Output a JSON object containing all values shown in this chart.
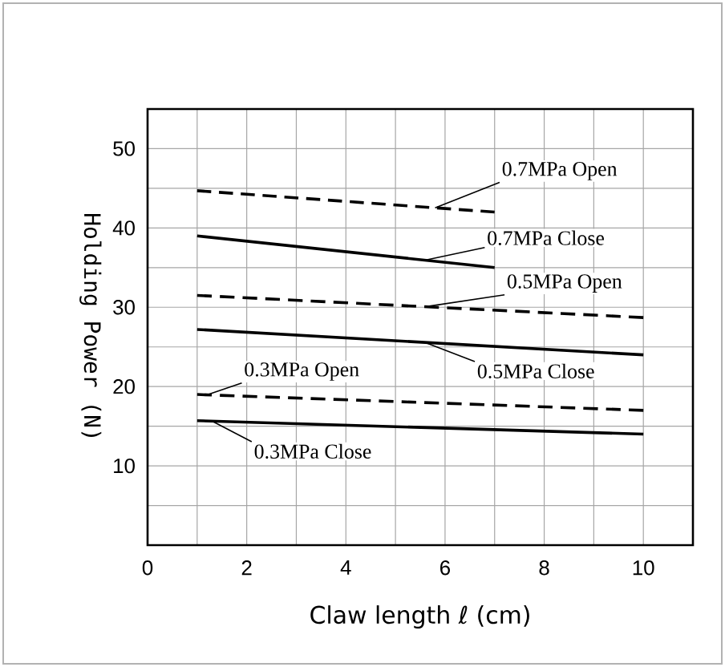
{
  "chart_data": {
    "type": "line",
    "xlabel": "Claw length  ℓ  (cm)",
    "ylabel": "Holding Power (N)",
    "xlim": [
      0,
      11
    ],
    "ylim": [
      0,
      55
    ],
    "xticks": [
      0,
      {
        "value": 1,
        "label": null
      },
      2,
      {
        "value": 3,
        "label": null
      },
      4,
      {
        "value": 5,
        "label": null
      },
      6,
      {
        "value": 7,
        "label": null
      },
      8,
      {
        "value": 9,
        "label": null
      },
      10
    ],
    "yticks": [
      {
        "value": 5,
        "label": null
      },
      10,
      {
        "value": 15,
        "label": null
      },
      20,
      {
        "value": 25,
        "label": null
      },
      30,
      {
        "value": 35,
        "label": null
      },
      40,
      {
        "value": 45,
        "label": null
      },
      50
    ],
    "grid": true,
    "marker": "none",
    "series": [
      {
        "name": "0.7MPa Open",
        "color": "#000000",
        "line_style": "dashed",
        "x": [
          1,
          7
        ],
        "values": [
          44.7,
          42
        ]
      },
      {
        "name": "0.7MPa Close",
        "color": "#000000",
        "line_style": "solid",
        "x": [
          1,
          7
        ],
        "values": [
          39,
          35
        ]
      },
      {
        "name": "0.5MPa Open",
        "color": "#000000",
        "line_style": "dashed",
        "x": [
          1,
          10
        ],
        "values": [
          31.5,
          28.7
        ]
      },
      {
        "name": "0.5MPa Close",
        "color": "#000000",
        "line_style": "solid",
        "x": [
          1,
          10
        ],
        "values": [
          27.2,
          24
        ]
      },
      {
        "name": "0.3MPa Open",
        "color": "#000000",
        "line_style": "dashed",
        "x": [
          1,
          10
        ],
        "values": [
          19,
          17
        ]
      },
      {
        "name": "0.3MPa Close",
        "color": "#000000",
        "line_style": "solid",
        "x": [
          1,
          10
        ],
        "values": [
          15.7,
          14
        ]
      }
    ]
  }
}
